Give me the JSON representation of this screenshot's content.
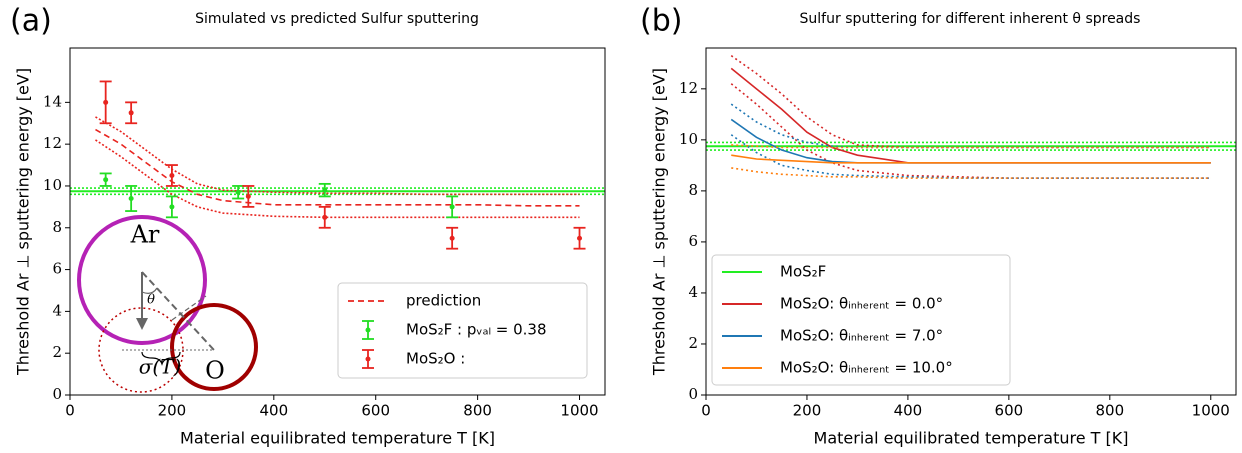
{
  "chart_data": [
    {
      "type": "errorbar",
      "panel_label": "(a)",
      "title": "Simulated vs predicted Sulfur sputtering",
      "x_label": "Material equilibrated temperature T [K]",
      "y_label": "Threshold Ar ⊥ sputtering energy [eV]",
      "xlim": [
        0,
        1050
      ],
      "ylim": [
        0,
        16.6
      ],
      "xticks": [
        0,
        200,
        400,
        600,
        800,
        1000
      ],
      "yticks": [
        0,
        2,
        4,
        6,
        8,
        10,
        12,
        14
      ],
      "reference": {
        "color": "#22ee22",
        "value": 9.75,
        "lower": 9.6,
        "upper": 9.9
      },
      "lines": [
        {
          "name": "prediction",
          "color": "#e8241f",
          "x": [
            50,
            100,
            150,
            200,
            250,
            300,
            400,
            500,
            600,
            700,
            800,
            900,
            1000
          ],
          "values": [
            12.7,
            12.0,
            11.1,
            10.2,
            9.6,
            9.3,
            9.1,
            9.1,
            9.1,
            9.1,
            9.1,
            9.05,
            9.05
          ],
          "lower": [
            12.2,
            11.4,
            10.5,
            9.6,
            9.0,
            8.7,
            8.55,
            8.5,
            8.5,
            8.5,
            8.5,
            8.5,
            8.5
          ],
          "upper": [
            13.3,
            12.6,
            11.7,
            10.8,
            10.1,
            9.8,
            9.7,
            9.65,
            9.65,
            9.6,
            9.6,
            9.6,
            9.6
          ]
        }
      ],
      "series": [
        {
          "name": "MoS₂F : pᵥₐₗ = 0.38",
          "color": "#22dd22",
          "x": [
            70,
            120,
            200,
            330,
            500,
            750
          ],
          "values": [
            10.3,
            9.4,
            9.0,
            9.7,
            9.8,
            9.0
          ],
          "errors": [
            0.3,
            0.6,
            0.5,
            0.3,
            0.3,
            0.5
          ]
        },
        {
          "name": "MoS₂O :",
          "color": "#e8241f",
          "x": [
            70,
            120,
            200,
            350,
            500,
            750,
            1000
          ],
          "values": [
            14.0,
            13.5,
            10.5,
            9.5,
            8.5,
            7.5,
            7.5
          ],
          "errors": [
            1.0,
            0.5,
            0.5,
            0.5,
            0.5,
            0.5,
            0.5
          ]
        }
      ],
      "annotations": [
        "Ar",
        "θ",
        "σ(T)",
        "O"
      ]
    },
    {
      "type": "line",
      "panel_label": "(b)",
      "title": "Sulfur sputtering for different inherent θ spreads",
      "x_label": "Material equilibrated temperature T [K]",
      "y_label": "Threshold Ar ⊥ sputtering energy [eV]",
      "xlim": [
        0,
        1050
      ],
      "ylim": [
        0,
        13.6
      ],
      "xticks": [
        0,
        200,
        400,
        600,
        800,
        1000
      ],
      "yticks": [
        0,
        2,
        4,
        6,
        8,
        10,
        12
      ],
      "reference": {
        "name": "MoS₂F",
        "color": "#22ee22",
        "value": 9.75,
        "lower": 9.6,
        "upper": 9.9
      },
      "x": [
        50,
        100,
        150,
        200,
        250,
        300,
        400,
        500,
        600,
        700,
        800,
        900,
        1000
      ],
      "series": [
        {
          "name": "MoS₂O: θᵢₙₕₑᵣₑₙₜ = 0.0°",
          "color": "#d62728",
          "values": [
            12.8,
            12.0,
            11.2,
            10.3,
            9.7,
            9.4,
            9.1,
            9.1,
            9.1,
            9.1,
            9.1,
            9.1,
            9.1
          ],
          "lower": [
            12.2,
            11.4,
            10.5,
            9.6,
            9.1,
            8.8,
            8.6,
            8.55,
            8.5,
            8.5,
            8.5,
            8.5,
            8.5
          ],
          "upper": [
            13.3,
            12.6,
            11.8,
            10.9,
            10.2,
            9.8,
            9.7,
            9.7,
            9.7,
            9.7,
            9.7,
            9.7,
            9.7
          ]
        },
        {
          "name": "MoS₂O: θᵢₙₕₑᵣₑₙₜ = 7.0°",
          "color": "#1f77b4",
          "values": [
            10.8,
            10.1,
            9.6,
            9.3,
            9.15,
            9.1,
            9.1,
            9.1,
            9.1,
            9.1,
            9.1,
            9.1,
            9.1
          ],
          "lower": [
            10.2,
            9.5,
            9.0,
            8.8,
            8.65,
            8.6,
            8.55,
            8.5,
            8.5,
            8.5,
            8.5,
            8.5,
            8.5
          ],
          "upper": [
            11.4,
            10.7,
            10.2,
            9.9,
            9.75,
            9.7,
            9.7,
            9.7,
            9.7,
            9.7,
            9.7,
            9.7,
            9.7
          ]
        },
        {
          "name": "MoS₂O: θᵢₙₕₑᵣₑₙₜ = 10.0°",
          "color": "#ff7f0e",
          "values": [
            9.4,
            9.25,
            9.2,
            9.15,
            9.1,
            9.1,
            9.1,
            9.1,
            9.1,
            9.1,
            9.1,
            9.1,
            9.1
          ],
          "lower": [
            8.9,
            8.75,
            8.65,
            8.6,
            8.55,
            8.55,
            8.5,
            8.5,
            8.5,
            8.5,
            8.5,
            8.5,
            8.5
          ],
          "upper": [
            9.8,
            9.75,
            9.7,
            9.7,
            9.7,
            9.7,
            9.7,
            9.7,
            9.7,
            9.7,
            9.7,
            9.7,
            9.7
          ]
        }
      ]
    }
  ]
}
